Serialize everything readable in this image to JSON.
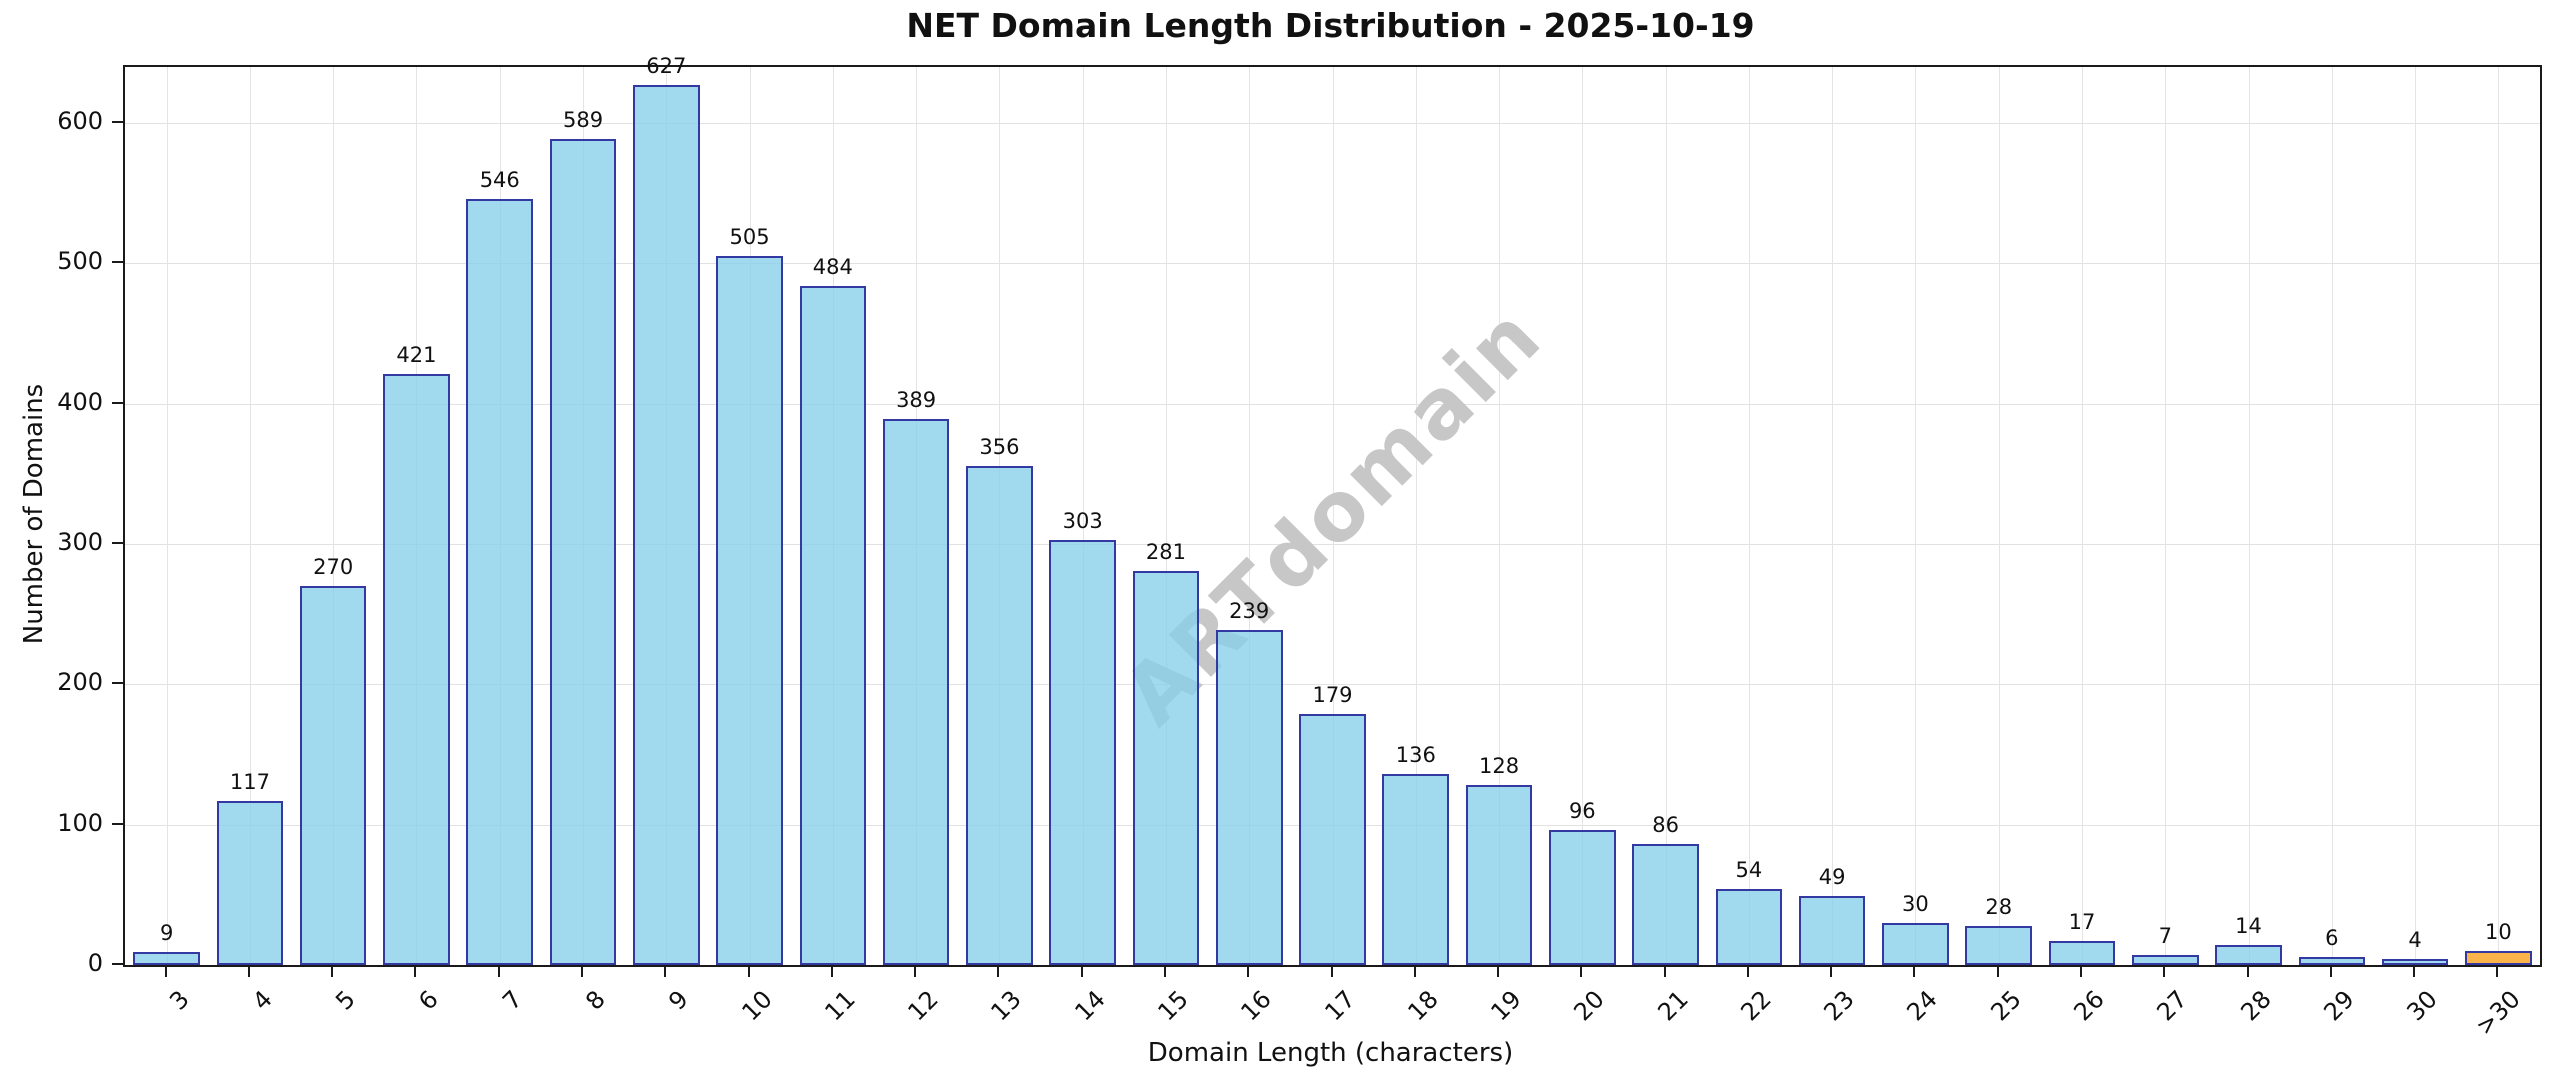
{
  "chart_data": {
    "type": "bar",
    "title": "NET Domain Length Distribution - 2025-10-19",
    "xlabel": "Domain Length (characters)",
    "ylabel": "Number of Domains",
    "categories": [
      "3",
      "4",
      "5",
      "6",
      "7",
      "8",
      "9",
      "10",
      "11",
      "12",
      "13",
      "14",
      "15",
      "16",
      "17",
      "18",
      "19",
      "20",
      "21",
      "22",
      "23",
      "24",
      "25",
      "26",
      "27",
      "28",
      "29",
      "30",
      ">30"
    ],
    "values": [
      9,
      117,
      270,
      421,
      546,
      589,
      627,
      505,
      484,
      389,
      356,
      303,
      281,
      239,
      179,
      136,
      128,
      96,
      86,
      54,
      49,
      30,
      28,
      17,
      7,
      14,
      6,
      4,
      10
    ],
    "bar_value_labels": [
      "9",
      "117",
      "270",
      "421",
      "546",
      "589",
      "627",
      "505",
      "484",
      "389",
      "356",
      "303",
      "281",
      "239",
      "179",
      "136",
      "128",
      "96",
      "86",
      "54",
      "49",
      "30",
      "28",
      "17",
      "7",
      "14",
      "6",
      "4",
      "10"
    ],
    "yticks": [
      0,
      100,
      200,
      300,
      400,
      500,
      600
    ],
    "ylim": [
      0,
      640
    ],
    "grid": true,
    "legend": "none",
    "bar_color": "#9fd8ef",
    "bar_edge_color": "#3439a2",
    "highlight_index": 28,
    "highlight_color": "#fbb040",
    "watermark": "ARTdomain",
    "watermark_color": "#c7c7c7"
  }
}
